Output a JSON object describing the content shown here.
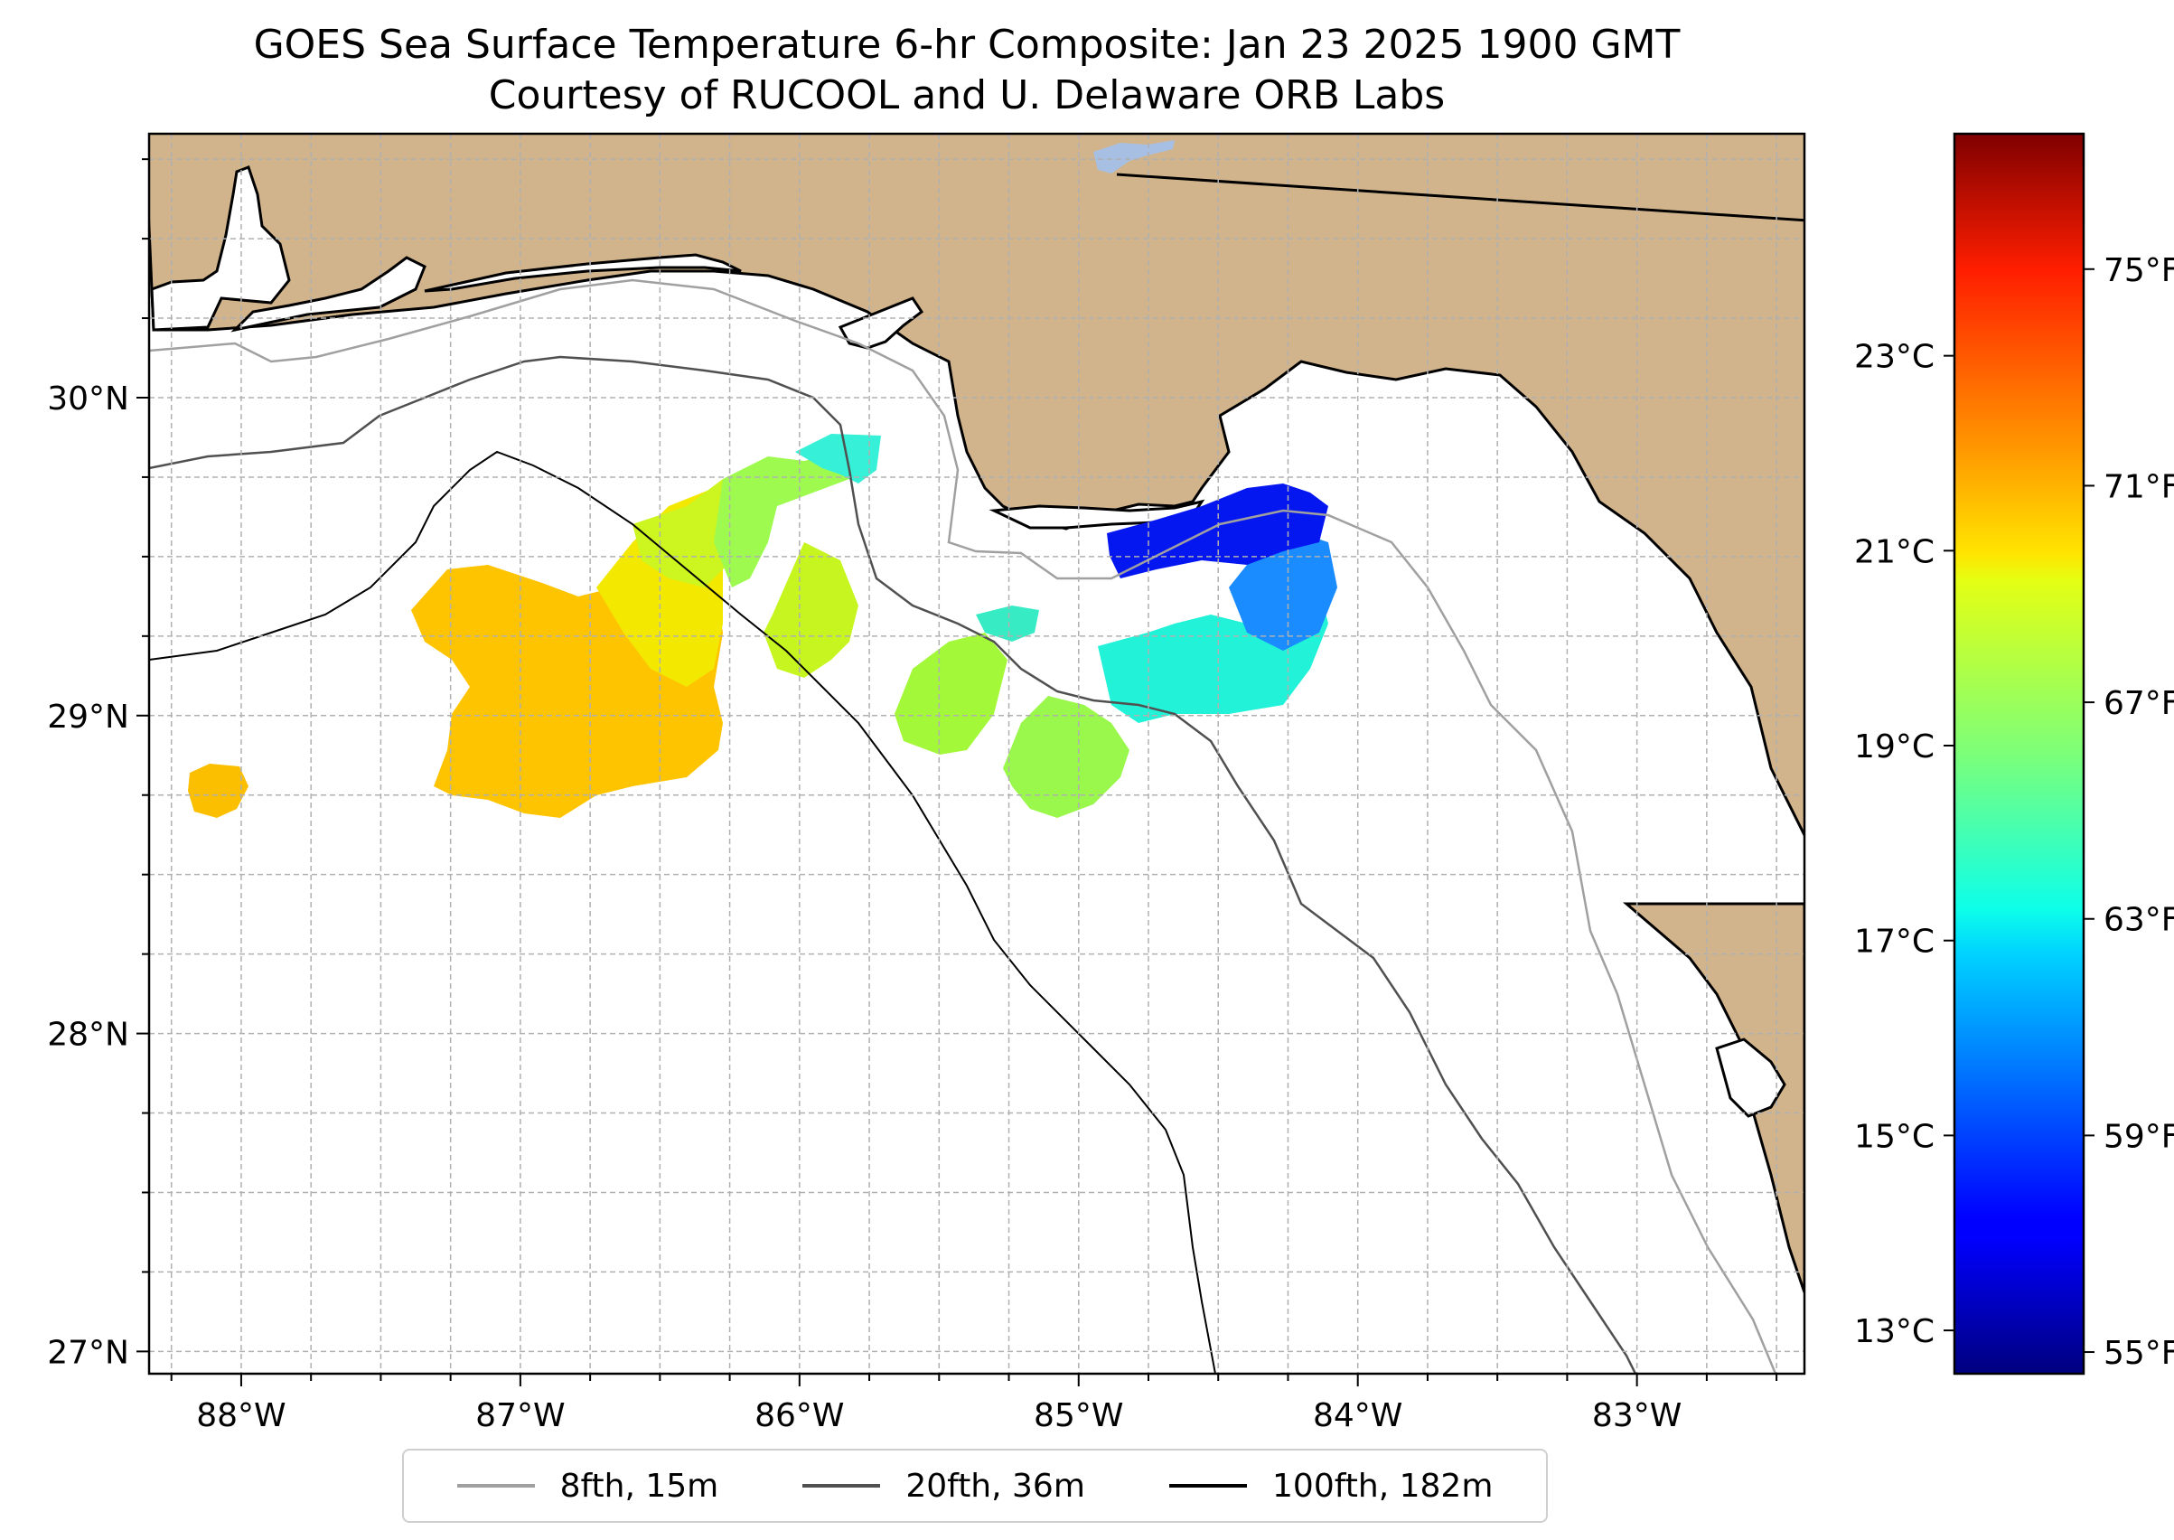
{
  "title": {
    "line1": "GOES Sea Surface Temperature 6-hr Composite: Jan 23 2025 1900 GMT",
    "line2": "Courtesy of RUCOOL and U. Delaware ORB Labs"
  },
  "map": {
    "lon_range": [
      -88.33,
      -82.4
    ],
    "lat_range": [
      26.93,
      30.83
    ],
    "lon_ticks": [
      {
        "value": -88,
        "label": "88°W"
      },
      {
        "value": -87,
        "label": "87°W"
      },
      {
        "value": -86,
        "label": "86°W"
      },
      {
        "value": -85,
        "label": "85°W"
      },
      {
        "value": -84,
        "label": "84°W"
      },
      {
        "value": -83,
        "label": "83°W"
      }
    ],
    "lat_ticks": [
      {
        "value": 27,
        "label": "27°N"
      },
      {
        "value": 28,
        "label": "28°N"
      },
      {
        "value": 29,
        "label": "29°N"
      },
      {
        "value": 30,
        "label": "30°N"
      }
    ],
    "colors": {
      "land": "#d2b48c",
      "water": "#ffffff",
      "lake": "#a6bfe3",
      "grid": "#b0b0b0"
    }
  },
  "colorbar": {
    "colormap": "jet",
    "celsius_ticks": [
      {
        "value": 13,
        "label": "13°C"
      },
      {
        "value": 15,
        "label": "15°C"
      },
      {
        "value": 17,
        "label": "17°C"
      },
      {
        "value": 19,
        "label": "19°C"
      },
      {
        "value": 21,
        "label": "21°C"
      },
      {
        "value": 23,
        "label": "23°C"
      }
    ],
    "fahrenheit_ticks": [
      {
        "value": 55,
        "label": "55°F"
      },
      {
        "value": 59,
        "label": "59°F"
      },
      {
        "value": 63,
        "label": "63°F"
      },
      {
        "value": 67,
        "label": "67°F"
      },
      {
        "value": 71,
        "label": "71°F"
      },
      {
        "value": 75,
        "label": "75°F"
      }
    ],
    "range_f": [
      54.6,
      77.5
    ]
  },
  "legend": [
    {
      "label": "8fth, 15m",
      "color": "#a0a0a0",
      "width": 4
    },
    {
      "label": "20fth, 36m",
      "color": "#505050",
      "width": 4
    },
    {
      "label": "100fth, 182m",
      "color": "#000000",
      "width": 4
    }
  ]
}
